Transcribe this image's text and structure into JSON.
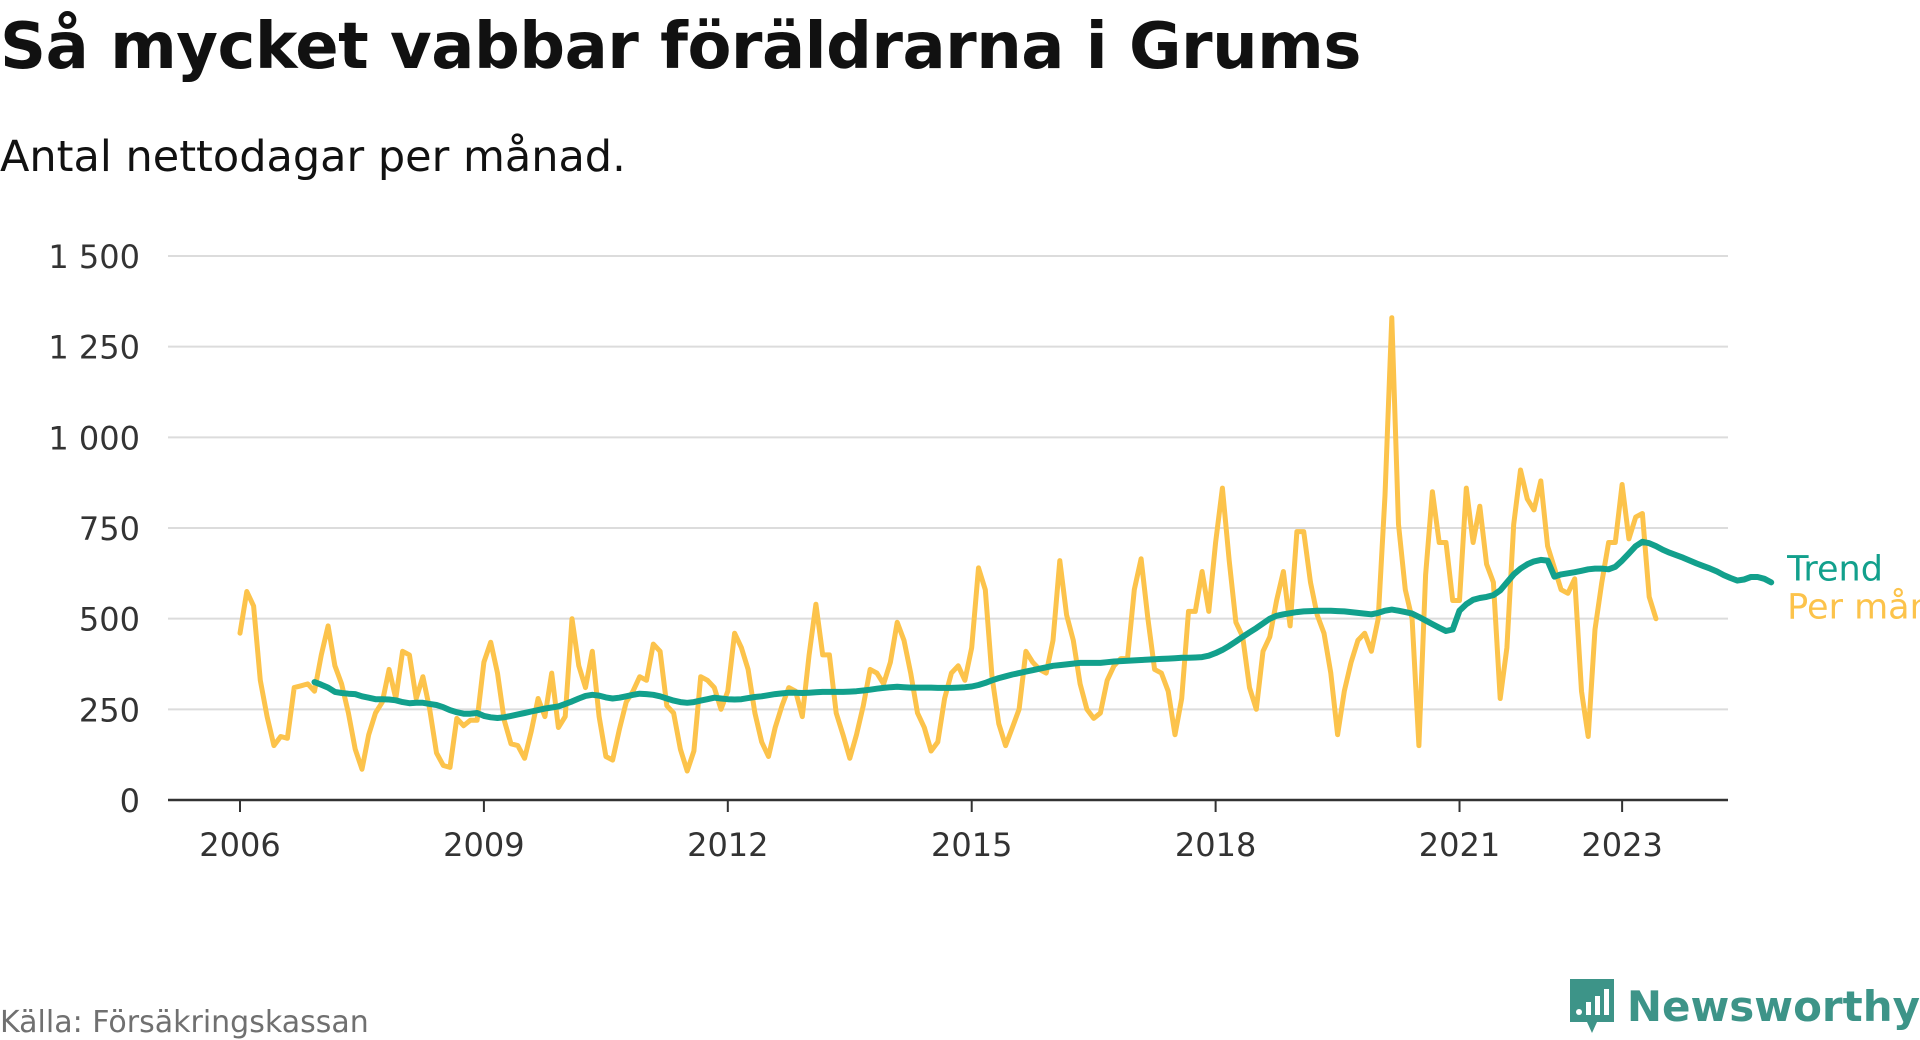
{
  "title": "Så mycket vabbar föräldrarna i Grums",
  "subtitle": "Antal nettodagar per månad.",
  "source": "Källa: Försäkringskassan",
  "brand": {
    "name": "Newsworthy",
    "icon": "newsworthy-logo-icon",
    "color": "#3d9488"
  },
  "chart_data": {
    "type": "line",
    "ylim": [
      0,
      1500
    ],
    "yticks": [
      0,
      250,
      500,
      750,
      1000,
      1250,
      1500
    ],
    "ytick_labels": [
      "0",
      "250",
      "500",
      "750",
      "1 000",
      "1 250",
      "1 500"
    ],
    "xlim": [
      "2006-01",
      "2023-06"
    ],
    "xticks": [
      {
        "date": "2006-01",
        "label": "2006"
      },
      {
        "date": "2009-01",
        "label": "2009"
      },
      {
        "date": "2012-01",
        "label": "2012"
      },
      {
        "date": "2015-01",
        "label": "2015"
      },
      {
        "date": "2018-01",
        "label": "2018"
      },
      {
        "date": "2021-01",
        "label": "2021"
      },
      {
        "date": "2023-01",
        "label": "2023"
      }
    ],
    "grid": true,
    "legend": "line-end labels",
    "series": [
      {
        "name": "Per månad",
        "color": "#fcc34b",
        "start": "2006-01",
        "values": [
          460,
          575,
          535,
          330,
          230,
          150,
          175,
          170,
          310,
          315,
          320,
          300,
          400,
          480,
          370,
          320,
          240,
          140,
          85,
          180,
          240,
          270,
          360,
          280,
          410,
          400,
          280,
          340,
          250,
          130,
          95,
          90,
          225,
          205,
          220,
          220,
          380,
          435,
          350,
          220,
          155,
          150,
          115,
          190,
          280,
          230,
          350,
          200,
          230,
          500,
          370,
          310,
          410,
          230,
          120,
          110,
          195,
          270,
          300,
          340,
          330,
          430,
          410,
          260,
          240,
          140,
          80,
          135,
          340,
          330,
          310,
          250,
          300,
          460,
          420,
          360,
          240,
          160,
          120,
          200,
          260,
          310,
          300,
          230,
          400,
          540,
          400,
          400,
          240,
          180,
          115,
          180,
          260,
          360,
          350,
          320,
          380,
          490,
          440,
          350,
          240,
          200,
          135,
          160,
          280,
          350,
          370,
          330,
          420,
          640,
          580,
          340,
          210,
          150,
          200,
          250,
          410,
          380,
          360,
          350,
          440,
          660,
          510,
          440,
          320,
          250,
          225,
          240,
          330,
          370,
          390,
          390,
          580,
          665,
          500,
          360,
          350,
          300,
          180,
          280,
          520,
          520,
          630,
          520,
          710,
          860,
          660,
          490,
          450,
          310,
          250,
          410,
          450,
          550,
          630,
          480,
          740,
          740,
          600,
          510,
          460,
          350,
          180,
          300,
          380,
          440,
          460,
          410,
          500,
          840,
          1330,
          760,
          580,
          500,
          150,
          620,
          850,
          710,
          710,
          550,
          550,
          860,
          710,
          810,
          650,
          600,
          280,
          420,
          760,
          910,
          830,
          800,
          880,
          700,
          640,
          580,
          570,
          610,
          300,
          175,
          470,
          600,
          710,
          710,
          870,
          720,
          780,
          790,
          560,
          500
        ]
      },
      {
        "name": "Trend",
        "color": "#12a08c",
        "start": "2006-12",
        "values": [
          325,
          318,
          310,
          298,
          295,
          293,
          292,
          286,
          282,
          278,
          278,
          277,
          275,
          270,
          267,
          268,
          268,
          265,
          262,
          256,
          248,
          242,
          238,
          238,
          240,
          232,
          228,
          226,
          228,
          232,
          236,
          240,
          244,
          248,
          252,
          255,
          258,
          265,
          272,
          280,
          287,
          290,
          288,
          283,
          280,
          282,
          286,
          290,
          293,
          292,
          290,
          286,
          280,
          274,
          270,
          268,
          270,
          274,
          278,
          282,
          280,
          278,
          277,
          278,
          281,
          284,
          286,
          289,
          292,
          294,
          296,
          296,
          295,
          296,
          297,
          298,
          298,
          298,
          298,
          299,
          300,
          302,
          304,
          307,
          309,
          311,
          312,
          311,
          310,
          310,
          310,
          310,
          309,
          309,
          309,
          310,
          311,
          313,
          317,
          323,
          330,
          336,
          341,
          346,
          350,
          354,
          358,
          362,
          366,
          370,
          372,
          374,
          376,
          378,
          378,
          378,
          378,
          380,
          382,
          383,
          384,
          385,
          386,
          387,
          388,
          389,
          390,
          391,
          392,
          392,
          393,
          394,
          398,
          405,
          414,
          425,
          437,
          450,
          462,
          474,
          487,
          500,
          508,
          512,
          515,
          518,
          520,
          521,
          522,
          522,
          522,
          521,
          520,
          518,
          516,
          514,
          512,
          516,
          522,
          525,
          522,
          518,
          514,
          505,
          495,
          485,
          475,
          466,
          470,
          522,
          540,
          552,
          557,
          560,
          565,
          578,
          600,
          622,
          638,
          650,
          658,
          662,
          660,
          616,
          622,
          625,
          628,
          632,
          636,
          638,
          638,
          636,
          643,
          660,
          680,
          700,
          712,
          708,
          700,
          690,
          682,
          675,
          668,
          660,
          652,
          645,
          638,
          630,
          620,
          612,
          605,
          608,
          615,
          615,
          610,
          600
        ]
      }
    ]
  }
}
